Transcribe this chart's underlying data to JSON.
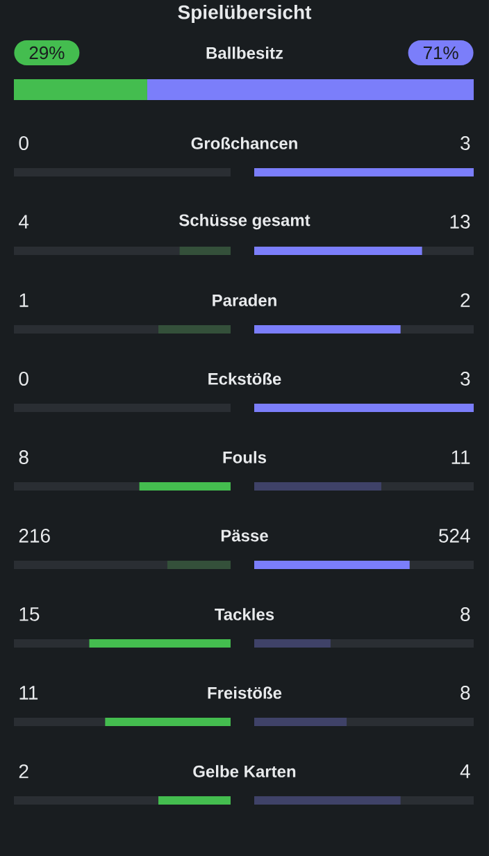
{
  "chart_data": {
    "type": "other",
    "title": "Spielübersicht",
    "categories": [
      "Ballbesitz",
      "Großchancen",
      "Schüsse gesamt",
      "Paraden",
      "Eckstöße",
      "Fouls",
      "Pässe",
      "Tackles",
      "Freistöße",
      "Gelbe Karten"
    ],
    "series": [
      {
        "colors": [
          "#44bd4f",
          "#34503a",
          "#34503a",
          "#34503a",
          "#34503a",
          "#44bd4f",
          "#34503a",
          "#44bd4f",
          "#44bd4f",
          "#44bd4f"
        ],
        "values": [
          29,
          0,
          4,
          1,
          0,
          8,
          216,
          15,
          11,
          2
        ],
        "value_labels": [
          "29%",
          "0",
          "4",
          "1",
          "0",
          "8",
          "216",
          "15",
          "11",
          "2"
        ]
      },
      {
        "colors": [
          "#7b7efa",
          "#7b7efa",
          "#7b7efa",
          "#7b7efa",
          "#7b7efa",
          "#3f4268",
          "#7b7efa",
          "#3f4268",
          "#3f4268",
          "#3f4268"
        ],
        "values": [
          71,
          3,
          13,
          2,
          3,
          11,
          524,
          8,
          8,
          4
        ],
        "value_labels": [
          "71%",
          "3",
          "13",
          "2",
          "3",
          "11",
          "524",
          "8",
          "8",
          "4"
        ]
      }
    ]
  }
}
